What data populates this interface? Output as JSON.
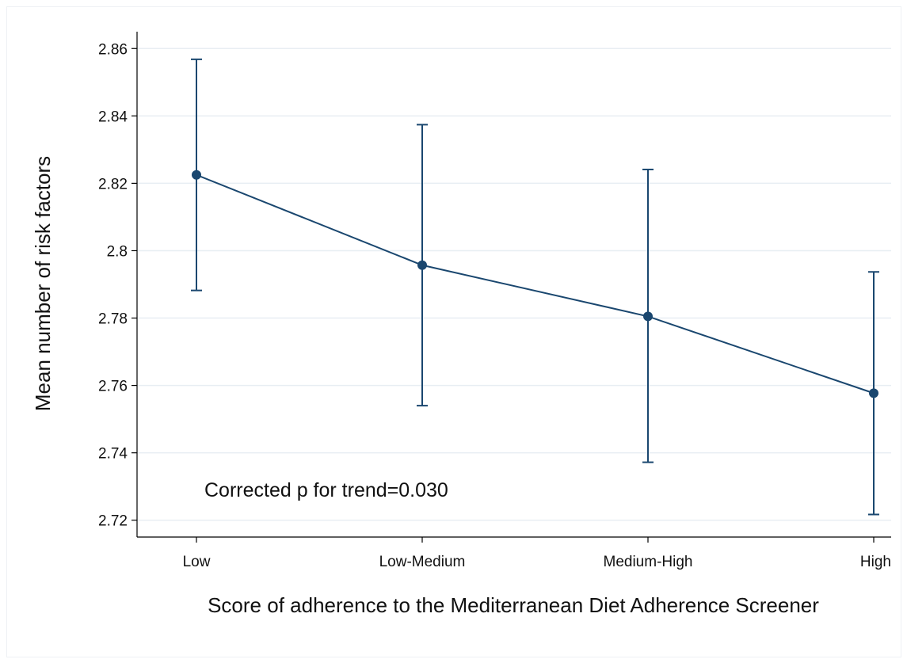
{
  "chart_data": {
    "type": "line",
    "title": "",
    "xlabel": "Score of adherence to the Mediterranean Diet Adherence Screener",
    "ylabel": "Mean number of risk factors",
    "categories": [
      "Low",
      "Low-Medium",
      "Medium-High",
      "High"
    ],
    "series": [
      {
        "values": [
          2.8225,
          2.7957,
          2.7805,
          2.7577
        ],
        "ci_lower": [
          2.7882,
          2.754,
          2.7372,
          2.7217
        ],
        "ci_upper": [
          2.8568,
          2.8374,
          2.8241,
          2.7937
        ]
      }
    ],
    "ylim": [
      2.715,
      2.865
    ],
    "yticks": [
      "2.72",
      "2.74",
      "2.76",
      "2.78",
      "2.8",
      "2.82",
      "2.84",
      "2.86"
    ],
    "grid": true,
    "annotation": "Corrected p for trend=0.030",
    "colors": {
      "series": "#1a476f",
      "grid": "#e8eef3",
      "axis": "#000000"
    }
  }
}
